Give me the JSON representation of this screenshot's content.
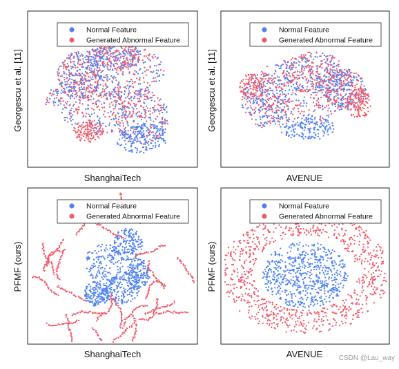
{
  "chart_data": [
    {
      "type": "scatter",
      "xlabel": "ShanghaiTech",
      "ylabel": "Georgescu et al. [11]",
      "legend_placement": "top-right",
      "grid": false,
      "series": [
        {
          "name": "Normal Feature",
          "color": "#4f82f3"
        },
        {
          "name": "Generated Abnormal Feature",
          "color": "#f05a6a"
        }
      ]
    },
    {
      "type": "scatter",
      "xlabel": "AVENUE",
      "ylabel": "Georgescu et al. [11]",
      "legend_placement": "top-right",
      "grid": false,
      "series": [
        {
          "name": "Normal Feature",
          "color": "#4f82f3"
        },
        {
          "name": "Generated Abnormal Feature",
          "color": "#f05a6a"
        }
      ]
    },
    {
      "type": "scatter",
      "xlabel": "ShanghaiTech",
      "ylabel": "PFMF (ours)",
      "legend_placement": "top-right",
      "grid": false,
      "series": [
        {
          "name": "Normal Feature",
          "color": "#4f82f3"
        },
        {
          "name": "Generated Abnormal Feature",
          "color": "#f05a6a"
        }
      ]
    },
    {
      "type": "scatter",
      "xlabel": "AVENUE",
      "ylabel": "PFMF (ours)",
      "legend_placement": "top-right",
      "grid": false,
      "series": [
        {
          "name": "Normal Feature",
          "color": "#4f82f3"
        },
        {
          "name": "Generated Abnormal Feature",
          "color": "#f05a6a"
        }
      ]
    }
  ],
  "watermark": "CSDN @Lau_way"
}
